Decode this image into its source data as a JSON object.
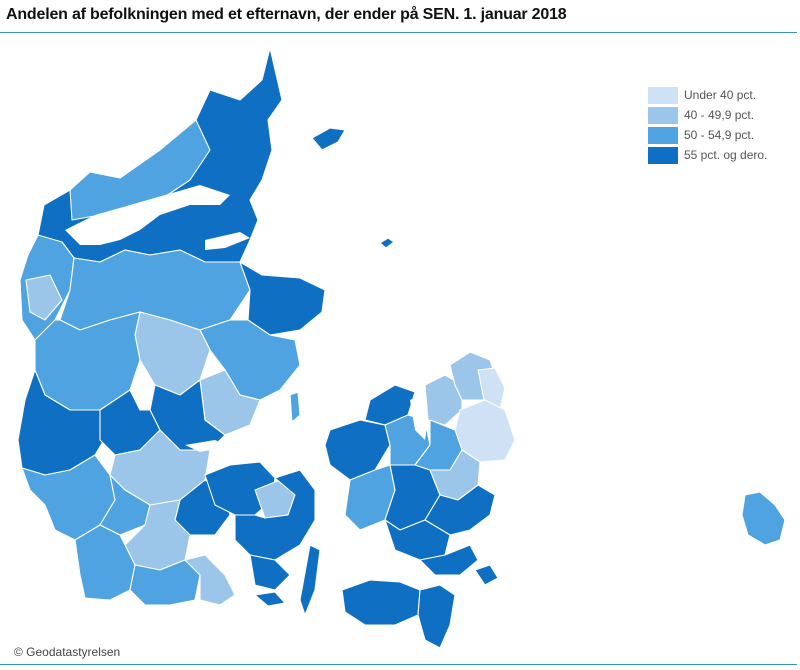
{
  "title": "Andelen af befolkningen med et efternavn,  der ender på SEN. 1. januar 2018",
  "legend": {
    "items": [
      {
        "label": "Under 40 pct.",
        "color": "#cfe1f5"
      },
      {
        "label": "40 - 49,9 pct.",
        "color": "#9cc5ea"
      },
      {
        "label": "50 - 54,9 pct.",
        "color": "#4ea3e0"
      },
      {
        "label": "55 pct. og dero.",
        "color": "#0f6fc2"
      }
    ]
  },
  "credit": "© Geodatastyrelsen"
}
